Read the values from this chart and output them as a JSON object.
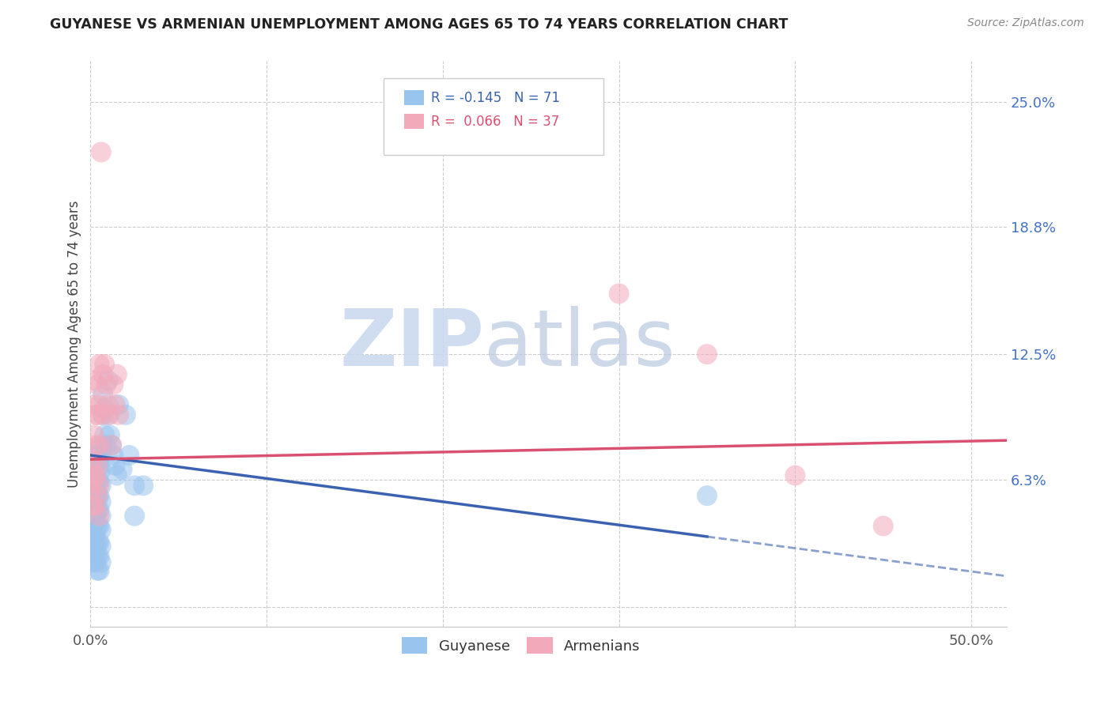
{
  "title": "GUYANESE VS ARMENIAN UNEMPLOYMENT AMONG AGES 65 TO 74 YEARS CORRELATION CHART",
  "source": "Source: ZipAtlas.com",
  "ylabel": "Unemployment Among Ages 65 to 74 years",
  "xlim": [
    0.0,
    0.52
  ],
  "ylim": [
    -0.01,
    0.27
  ],
  "xticks": [
    0.0,
    0.1,
    0.2,
    0.3,
    0.4,
    0.5
  ],
  "xticklabels": [
    "0.0%",
    "",
    "",
    "",
    "",
    "50.0%"
  ],
  "ytick_positions": [
    0.0,
    0.063,
    0.125,
    0.188,
    0.25
  ],
  "ytick_labels": [
    "",
    "6.3%",
    "12.5%",
    "18.8%",
    "25.0%"
  ],
  "background_color": "#ffffff",
  "grid_color": "#cccccc",
  "watermark_zip": "ZIP",
  "watermark_atlas": "atlas",
  "guyanese_color": "#99C4EE",
  "armenian_color": "#F2AABB",
  "guyanese_line_color": "#3A62B0",
  "armenian_line_color": "#D95070",
  "guyanese_scatter": [
    [
      0.0,
      0.062
    ],
    [
      0.001,
      0.068
    ],
    [
      0.001,
      0.058
    ],
    [
      0.001,
      0.05
    ],
    [
      0.001,
      0.045
    ],
    [
      0.001,
      0.04
    ],
    [
      0.001,
      0.035
    ],
    [
      0.001,
      0.028
    ],
    [
      0.002,
      0.075
    ],
    [
      0.002,
      0.068
    ],
    [
      0.002,
      0.062
    ],
    [
      0.002,
      0.055
    ],
    [
      0.002,
      0.048
    ],
    [
      0.002,
      0.042
    ],
    [
      0.002,
      0.035
    ],
    [
      0.002,
      0.028
    ],
    [
      0.002,
      0.022
    ],
    [
      0.003,
      0.072
    ],
    [
      0.003,
      0.065
    ],
    [
      0.003,
      0.058
    ],
    [
      0.003,
      0.052
    ],
    [
      0.003,
      0.045
    ],
    [
      0.003,
      0.038
    ],
    [
      0.003,
      0.03
    ],
    [
      0.003,
      0.022
    ],
    [
      0.004,
      0.068
    ],
    [
      0.004,
      0.062
    ],
    [
      0.004,
      0.055
    ],
    [
      0.004,
      0.048
    ],
    [
      0.004,
      0.04
    ],
    [
      0.004,
      0.032
    ],
    [
      0.004,
      0.025
    ],
    [
      0.004,
      0.018
    ],
    [
      0.005,
      0.078
    ],
    [
      0.005,
      0.07
    ],
    [
      0.005,
      0.062
    ],
    [
      0.005,
      0.055
    ],
    [
      0.005,
      0.048
    ],
    [
      0.005,
      0.04
    ],
    [
      0.005,
      0.032
    ],
    [
      0.005,
      0.025
    ],
    [
      0.005,
      0.018
    ],
    [
      0.006,
      0.075
    ],
    [
      0.006,
      0.068
    ],
    [
      0.006,
      0.06
    ],
    [
      0.006,
      0.052
    ],
    [
      0.006,
      0.045
    ],
    [
      0.006,
      0.038
    ],
    [
      0.006,
      0.03
    ],
    [
      0.006,
      0.022
    ],
    [
      0.007,
      0.105
    ],
    [
      0.007,
      0.095
    ],
    [
      0.007,
      0.08
    ],
    [
      0.008,
      0.098
    ],
    [
      0.008,
      0.085
    ],
    [
      0.009,
      0.08
    ],
    [
      0.01,
      0.112
    ],
    [
      0.01,
      0.095
    ],
    [
      0.011,
      0.085
    ],
    [
      0.012,
      0.08
    ],
    [
      0.013,
      0.075
    ],
    [
      0.014,
      0.07
    ],
    [
      0.015,
      0.065
    ],
    [
      0.016,
      0.1
    ],
    [
      0.018,
      0.068
    ],
    [
      0.02,
      0.095
    ],
    [
      0.022,
      0.075
    ],
    [
      0.025,
      0.06
    ],
    [
      0.025,
      0.045
    ],
    [
      0.03,
      0.06
    ],
    [
      0.35,
      0.055
    ]
  ],
  "armenian_scatter": [
    [
      0.0,
      0.058
    ],
    [
      0.001,
      0.072
    ],
    [
      0.001,
      0.062
    ],
    [
      0.001,
      0.05
    ],
    [
      0.002,
      0.112
    ],
    [
      0.002,
      0.1
    ],
    [
      0.002,
      0.085
    ],
    [
      0.002,
      0.065
    ],
    [
      0.003,
      0.095
    ],
    [
      0.003,
      0.08
    ],
    [
      0.003,
      0.065
    ],
    [
      0.003,
      0.05
    ],
    [
      0.004,
      0.11
    ],
    [
      0.004,
      0.095
    ],
    [
      0.004,
      0.07
    ],
    [
      0.004,
      0.055
    ],
    [
      0.005,
      0.12
    ],
    [
      0.005,
      0.1
    ],
    [
      0.005,
      0.08
    ],
    [
      0.005,
      0.06
    ],
    [
      0.005,
      0.045
    ],
    [
      0.006,
      0.225
    ],
    [
      0.007,
      0.115
    ],
    [
      0.007,
      0.095
    ],
    [
      0.008,
      0.12
    ],
    [
      0.009,
      0.11
    ],
    [
      0.01,
      0.1
    ],
    [
      0.011,
      0.095
    ],
    [
      0.012,
      0.08
    ],
    [
      0.013,
      0.11
    ],
    [
      0.014,
      0.1
    ],
    [
      0.015,
      0.115
    ],
    [
      0.016,
      0.095
    ],
    [
      0.3,
      0.155
    ],
    [
      0.35,
      0.125
    ],
    [
      0.4,
      0.065
    ],
    [
      0.45,
      0.04
    ]
  ],
  "blue_line_solid": [
    0.0,
    0.35
  ],
  "blue_line_dash": [
    0.35,
    0.52
  ],
  "pink_line": [
    0.0,
    0.52
  ],
  "blue_intercept": 0.075,
  "blue_slope": -0.115,
  "pink_intercept": 0.073,
  "pink_slope": 0.018
}
